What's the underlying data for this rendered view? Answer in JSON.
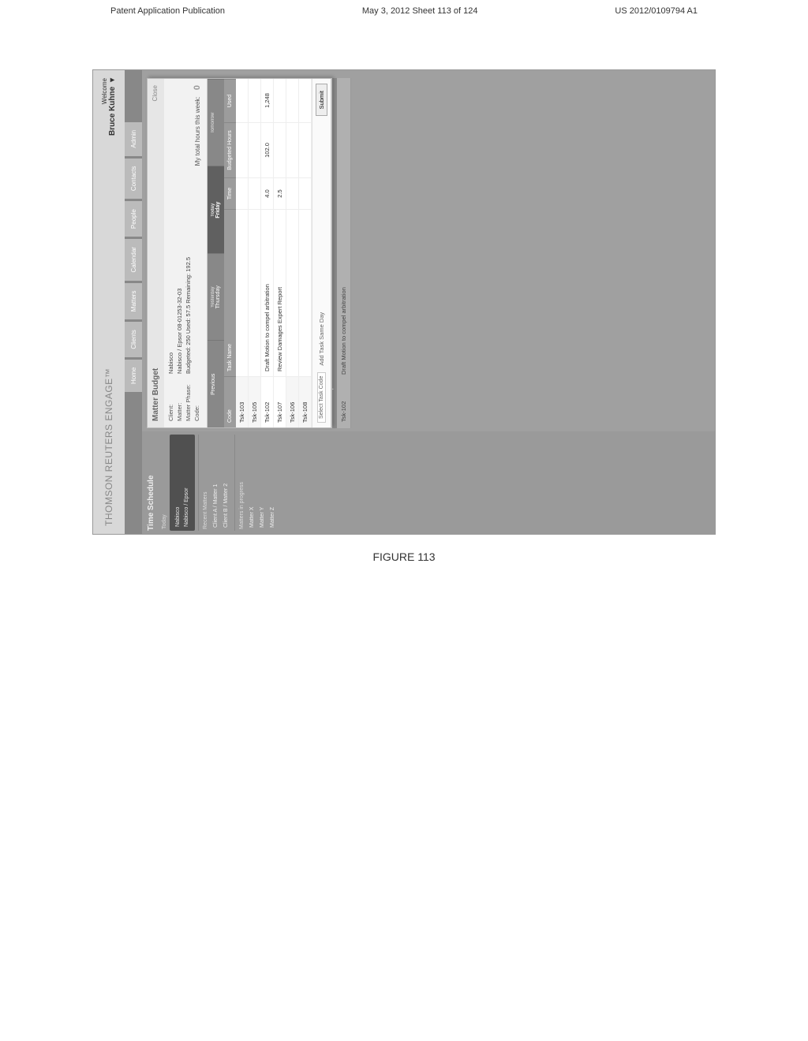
{
  "page_header": {
    "left": "Patent Application Publication",
    "center": "May 3, 2012  Sheet 113 of 124",
    "right": "US 2012/0109794 A1"
  },
  "figure_caption": "FIGURE 113",
  "brand": "THOMSON REUTERS ENGAGE™",
  "welcome": {
    "label": "Welcome",
    "name": "Bruce Kuhne"
  },
  "nav": [
    "Home",
    "Clients",
    "Matters",
    "Calendar",
    "People",
    "Contacts",
    "Admin"
  ],
  "sidebar": {
    "title": "Time Schedule",
    "date_label": "Today",
    "selected_card": {
      "client": "Nabisco",
      "matter": "Nabisco / Epsor"
    },
    "recent_label": "Recent Matters",
    "recent": [
      "Client A / Matter 1",
      "Client B / Matter 2"
    ],
    "other_label": "Matters in progress",
    "other": [
      "Matter X",
      "Matter Y",
      "Matter Z"
    ]
  },
  "panel": {
    "title": "Matter Budget",
    "close": "Close",
    "rows": [
      {
        "label": "Client:",
        "value": "Nabisco"
      },
      {
        "label": "Matter:",
        "value": "Nabisco / Epsor  08-01253-32-03"
      },
      {
        "label": "Matter Phase:",
        "value": "Budgeted: 250   Used: 57.5   Remaining: 192.5"
      },
      {
        "label": "Code:",
        "value": ""
      }
    ],
    "hours_label": "My total hours this week:",
    "hours_value": "0",
    "calendar": {
      "yesterday": "Yesterday",
      "today": "Today",
      "tomorrow": "Tomorrow",
      "days": [
        "Previous",
        "Thursday",
        "Friday"
      ]
    },
    "phase_header": [
      "Code",
      "Task Name",
      "Time",
      "Budgeted Hours",
      "Used"
    ],
    "tasks": [
      {
        "code": "Tsk-102",
        "name": "Draft Motion to compel arbitration",
        "time": "4.0",
        "budget": "102.0",
        "used": "1,248"
      },
      {
        "code": "Tsk-107",
        "name": "Review Damages Expert Report",
        "time": "2.5",
        "budget": "",
        "used": ""
      }
    ],
    "empty_codes": [
      "Tsk-103",
      "Tsk-105",
      "Tsk-106",
      "Tsk-108"
    ],
    "add_task": {
      "select_label": "Select Task Code",
      "same_day": "Add Task Same Day",
      "submit": "Submit"
    }
  },
  "bg_sections": [
    {
      "head": "Nabisco / Epsor",
      "rows": [
        {
          "code": "Tsk-102",
          "desc": "Draft Motion to compel arbitration"
        }
      ]
    }
  ]
}
